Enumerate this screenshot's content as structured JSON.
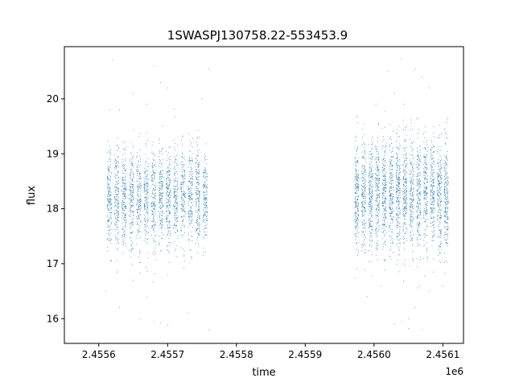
{
  "chart_data": {
    "type": "scatter",
    "title": "1SWASPJ130758.22-553453.9",
    "xlabel": "time",
    "ylabel": "flux",
    "x_offset_label": "1e6",
    "xlim": [
      2.45555,
      2.45613
    ],
    "ylim": [
      15.55,
      20.95
    ],
    "x_ticks": [
      2.4556,
      2.4557,
      2.4558,
      2.4559,
      2.456,
      2.4561
    ],
    "x_tick_labels": [
      "2.4556",
      "2.4557",
      "2.4558",
      "2.4559",
      "2.4560",
      "2.4561"
    ],
    "y_ticks": [
      16,
      17,
      18,
      19,
      20
    ],
    "y_tick_labels": [
      "16",
      "17",
      "18",
      "19",
      "20"
    ],
    "grid": false,
    "legend": "none",
    "marker_color": "#1f77b4",
    "series": [
      {
        "clusters": [
          {
            "x_range": [
              2.45561,
              2.45576
            ],
            "center_flux": 18.2,
            "spread": 0.45,
            "points": 2600
          },
          {
            "x_range": [
              2.45597,
              2.45611
            ],
            "center_flux": 18.25,
            "spread": 0.5,
            "points": 3000
          }
        ],
        "outliers": [
          [
            2.45562,
            20.7
          ],
          [
            2.45563,
            19.8
          ],
          [
            2.45565,
            20.1
          ],
          [
            2.45567,
            19.9
          ],
          [
            2.45568,
            20.6
          ],
          [
            2.45569,
            20.3
          ],
          [
            2.4557,
            20.2
          ],
          [
            2.45575,
            20.0
          ],
          [
            2.45576,
            20.55
          ],
          [
            2.45561,
            16.5
          ],
          [
            2.45563,
            16.2
          ],
          [
            2.45565,
            16.7
          ],
          [
            2.45566,
            16.0
          ],
          [
            2.45568,
            15.95
          ],
          [
            2.45569,
            15.92
          ],
          [
            2.4557,
            15.88
          ],
          [
            2.45573,
            16.1
          ],
          [
            2.45576,
            15.8
          ],
          [
            2.45599,
            16.4
          ],
          [
            2.45601,
            16.6
          ],
          [
            2.45602,
            20.5
          ],
          [
            2.45603,
            20.1
          ],
          [
            2.45604,
            20.72
          ],
          [
            2.45604,
            15.95
          ],
          [
            2.45605,
            15.82
          ],
          [
            2.45606,
            20.55
          ],
          [
            2.45606,
            16.2
          ],
          [
            2.45607,
            20.4
          ],
          [
            2.45607,
            15.8
          ],
          [
            2.45608,
            20.2
          ],
          [
            2.45608,
            16.5
          ],
          [
            2.4561,
            16.6
          ],
          [
            2.45605,
            16.0
          ],
          [
            2.45603,
            15.9
          ]
        ]
      }
    ]
  }
}
